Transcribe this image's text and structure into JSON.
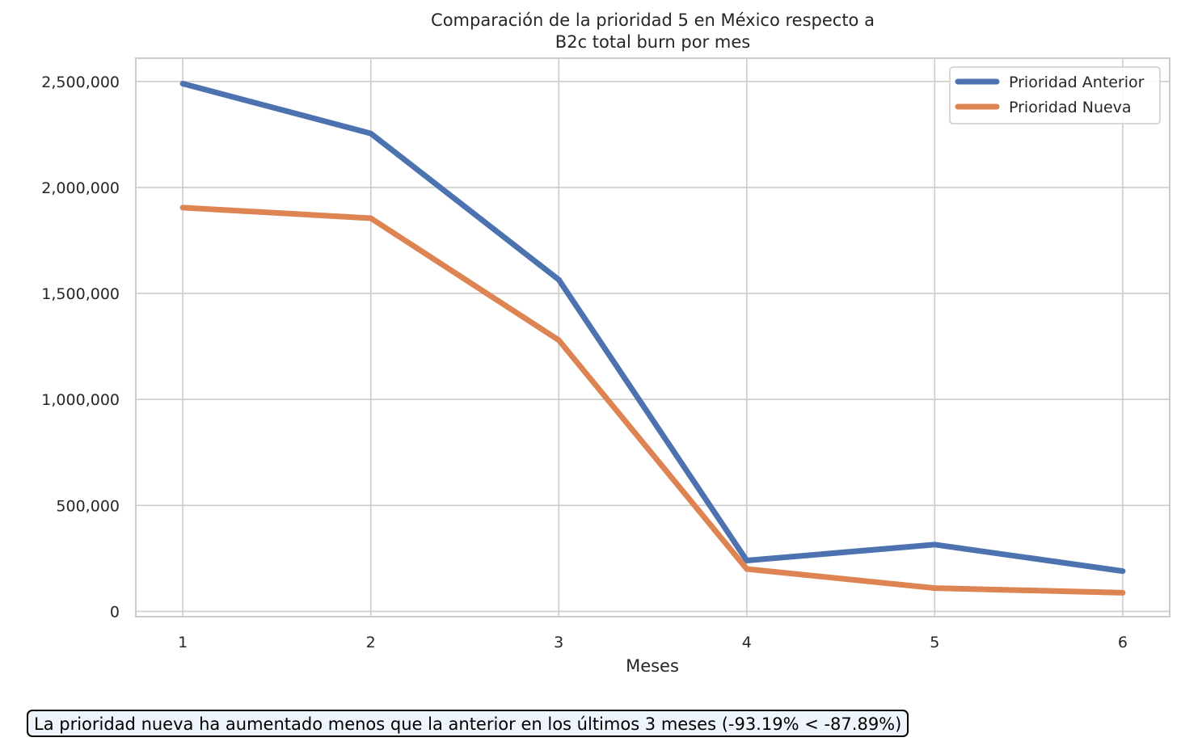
{
  "chart_data": {
    "type": "line",
    "title": "Comparación de la prioridad 5 en México respecto a\nB2c total burn por mes",
    "xlabel": "Meses",
    "ylabel": "",
    "x": [
      1,
      2,
      3,
      4,
      5,
      6
    ],
    "x_ticks": [
      "1",
      "2",
      "3",
      "4",
      "5",
      "6"
    ],
    "ylim": [
      -25000,
      2610000
    ],
    "y_ticks": [
      0,
      500000,
      1000000,
      1500000,
      2000000,
      2500000
    ],
    "y_tick_labels": [
      "0",
      "500,000",
      "1,000,000",
      "1,500,000",
      "2,000,000",
      "2,500,000"
    ],
    "grid": true,
    "legend_position": "top-right",
    "series": [
      {
        "name": "Prioridad Anterior",
        "color": "#4c72b0",
        "values": [
          2490000,
          2255000,
          1565000,
          240000,
          315000,
          190000
        ]
      },
      {
        "name": "Prioridad Nueva",
        "color": "#dd8452",
        "values": [
          1905000,
          1855000,
          1280000,
          200000,
          110000,
          88000
        ]
      }
    ]
  },
  "note": {
    "text": "La prioridad nueva ha aumentado menos que la anterior en los últimos 3 meses (-93.19% < -87.89%)"
  }
}
